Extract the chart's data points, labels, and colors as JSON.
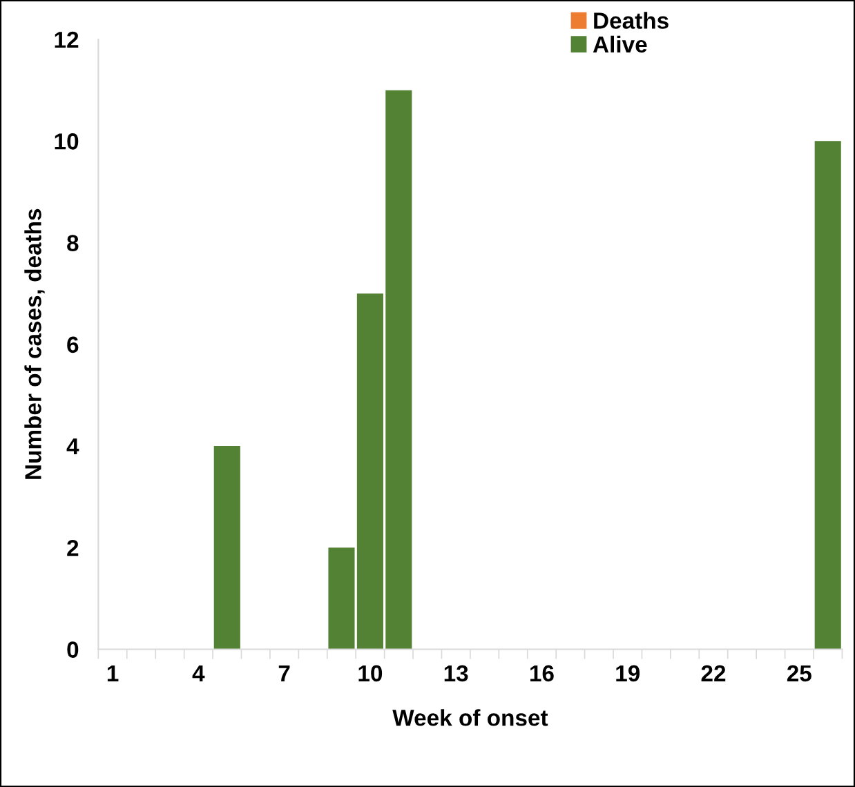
{
  "chart_data": {
    "type": "bar",
    "xlabel": "Week of onset",
    "ylabel": "Number of cases, deaths",
    "categories": [
      "1",
      null,
      null,
      "4",
      null,
      null,
      "7",
      null,
      null,
      "10",
      null,
      null,
      "13",
      null,
      null,
      "16",
      null,
      null,
      "19",
      null,
      null,
      "22",
      null,
      null,
      "25",
      null
    ],
    "series": [
      {
        "name": "Deaths",
        "color": "#ed7d31",
        "values": [
          0,
          0,
          0,
          0,
          0,
          0,
          0,
          0,
          0,
          0,
          0,
          0,
          0,
          0,
          0,
          0,
          0,
          0,
          0,
          0,
          0,
          0,
          0,
          0,
          0,
          0
        ]
      },
      {
        "name": "Alive",
        "color": "#548235",
        "values": [
          0,
          0,
          0,
          0,
          4,
          0,
          0,
          0,
          2,
          7,
          11,
          0,
          0,
          0,
          0,
          0,
          0,
          0,
          0,
          0,
          0,
          0,
          0,
          0,
          0,
          10
        ]
      }
    ],
    "ylim": [
      0,
      12
    ],
    "yticks": [
      0,
      2,
      4,
      6,
      8,
      10,
      12
    ],
    "grid": false,
    "legend": "top right"
  }
}
